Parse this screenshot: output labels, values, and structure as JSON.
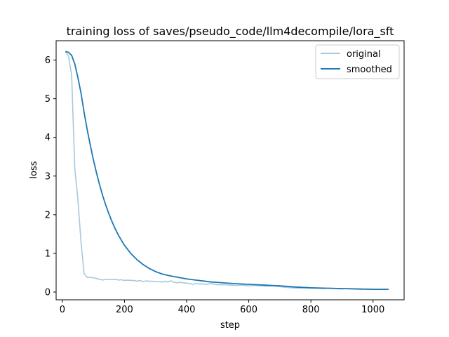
{
  "chart_data": {
    "type": "line",
    "title": "training loss of saves/pseudo_code/llm4decompile/lora_sft",
    "xlabel": "step",
    "ylabel": "loss",
    "xlim": [
      -20,
      1100
    ],
    "ylim": [
      -0.2,
      6.5
    ],
    "xticks": [
      0,
      200,
      400,
      600,
      800,
      1000
    ],
    "yticks": [
      0,
      1,
      2,
      3,
      4,
      5,
      6
    ],
    "grid": false,
    "legend_position": "top-right",
    "series": [
      {
        "name": "original",
        "color": "#a6c8e0",
        "x": [
          10,
          20,
          30,
          40,
          50,
          60,
          70,
          80,
          90,
          100,
          110,
          120,
          130,
          140,
          150,
          160,
          170,
          180,
          190,
          200,
          210,
          220,
          230,
          240,
          250,
          260,
          270,
          280,
          290,
          300,
          310,
          320,
          330,
          340,
          350,
          360,
          370,
          380,
          390,
          400,
          410,
          420,
          430,
          440,
          450,
          460,
          470,
          480,
          490,
          500,
          520,
          540,
          560,
          580,
          600,
          620,
          640,
          660,
          680,
          700,
          720,
          740,
          760,
          780,
          800,
          820,
          840,
          860,
          880,
          900,
          920,
          940,
          960,
          980,
          1000,
          1020,
          1050
        ],
        "values": [
          6.22,
          6.1,
          5.6,
          3.2,
          2.4,
          1.3,
          0.48,
          0.38,
          0.38,
          0.37,
          0.35,
          0.33,
          0.31,
          0.33,
          0.33,
          0.32,
          0.33,
          0.31,
          0.32,
          0.3,
          0.31,
          0.3,
          0.3,
          0.28,
          0.3,
          0.27,
          0.29,
          0.28,
          0.28,
          0.27,
          0.27,
          0.26,
          0.28,
          0.26,
          0.29,
          0.25,
          0.24,
          0.25,
          0.24,
          0.23,
          0.22,
          0.2,
          0.22,
          0.21,
          0.21,
          0.2,
          0.21,
          0.22,
          0.2,
          0.19,
          0.19,
          0.18,
          0.17,
          0.18,
          0.16,
          0.17,
          0.16,
          0.15,
          0.16,
          0.14,
          0.12,
          0.11,
          0.1,
          0.11,
          0.1,
          0.1,
          0.09,
          0.1,
          0.09,
          0.08,
          0.09,
          0.08,
          0.07,
          0.08,
          0.07,
          0.07,
          0.07
        ]
      },
      {
        "name": "smoothed",
        "color": "#1f77b4",
        "x": [
          10,
          20,
          30,
          40,
          50,
          60,
          70,
          80,
          90,
          100,
          110,
          120,
          130,
          140,
          150,
          160,
          170,
          180,
          190,
          200,
          220,
          240,
          260,
          280,
          300,
          320,
          340,
          360,
          380,
          400,
          420,
          440,
          460,
          480,
          500,
          550,
          600,
          650,
          700,
          750,
          800,
          850,
          900,
          950,
          1000,
          1050
        ],
        "values": [
          6.22,
          6.2,
          6.12,
          5.9,
          5.55,
          5.15,
          4.65,
          4.2,
          3.8,
          3.42,
          3.08,
          2.77,
          2.49,
          2.24,
          2.02,
          1.82,
          1.64,
          1.48,
          1.34,
          1.21,
          1.0,
          0.84,
          0.71,
          0.61,
          0.53,
          0.47,
          0.43,
          0.4,
          0.37,
          0.34,
          0.32,
          0.3,
          0.28,
          0.26,
          0.25,
          0.22,
          0.2,
          0.18,
          0.16,
          0.13,
          0.11,
          0.1,
          0.09,
          0.08,
          0.07,
          0.07
        ]
      }
    ]
  }
}
